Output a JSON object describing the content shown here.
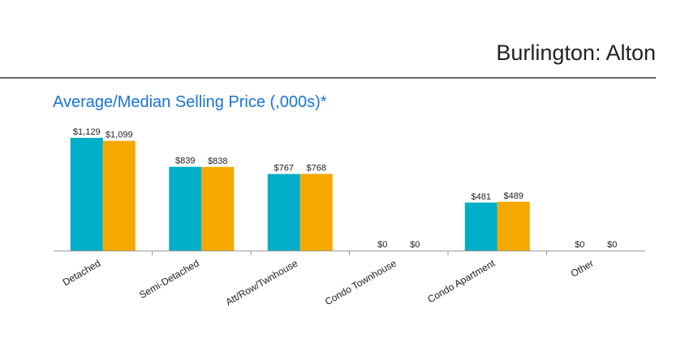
{
  "header": {
    "title": "Burlington: Alton"
  },
  "chart_data": {
    "type": "bar",
    "title": "Average/Median Selling Price (,000s)*",
    "categories": [
      "Detached",
      "Semi-Detached",
      "Att/Row/Twnhouse",
      "Condo Townhouse",
      "Condo Apartment",
      "Other"
    ],
    "series": [
      {
        "name": "Average",
        "color": "#00aec7",
        "values": [
          1129,
          839,
          767,
          0,
          481,
          0
        ],
        "labels": [
          "$1,129",
          "$839",
          "$767",
          "$0",
          "$481",
          "$0"
        ]
      },
      {
        "name": "Median",
        "color": "#f5a800",
        "values": [
          1099,
          838,
          768,
          0,
          489,
          0
        ],
        "labels": [
          "$1,099",
          "$838",
          "$768",
          "$0",
          "$489",
          "$0"
        ]
      }
    ],
    "xlabel": "",
    "ylabel": "",
    "ylim": [
      0,
      1129
    ],
    "grid": false,
    "legend": "none"
  }
}
